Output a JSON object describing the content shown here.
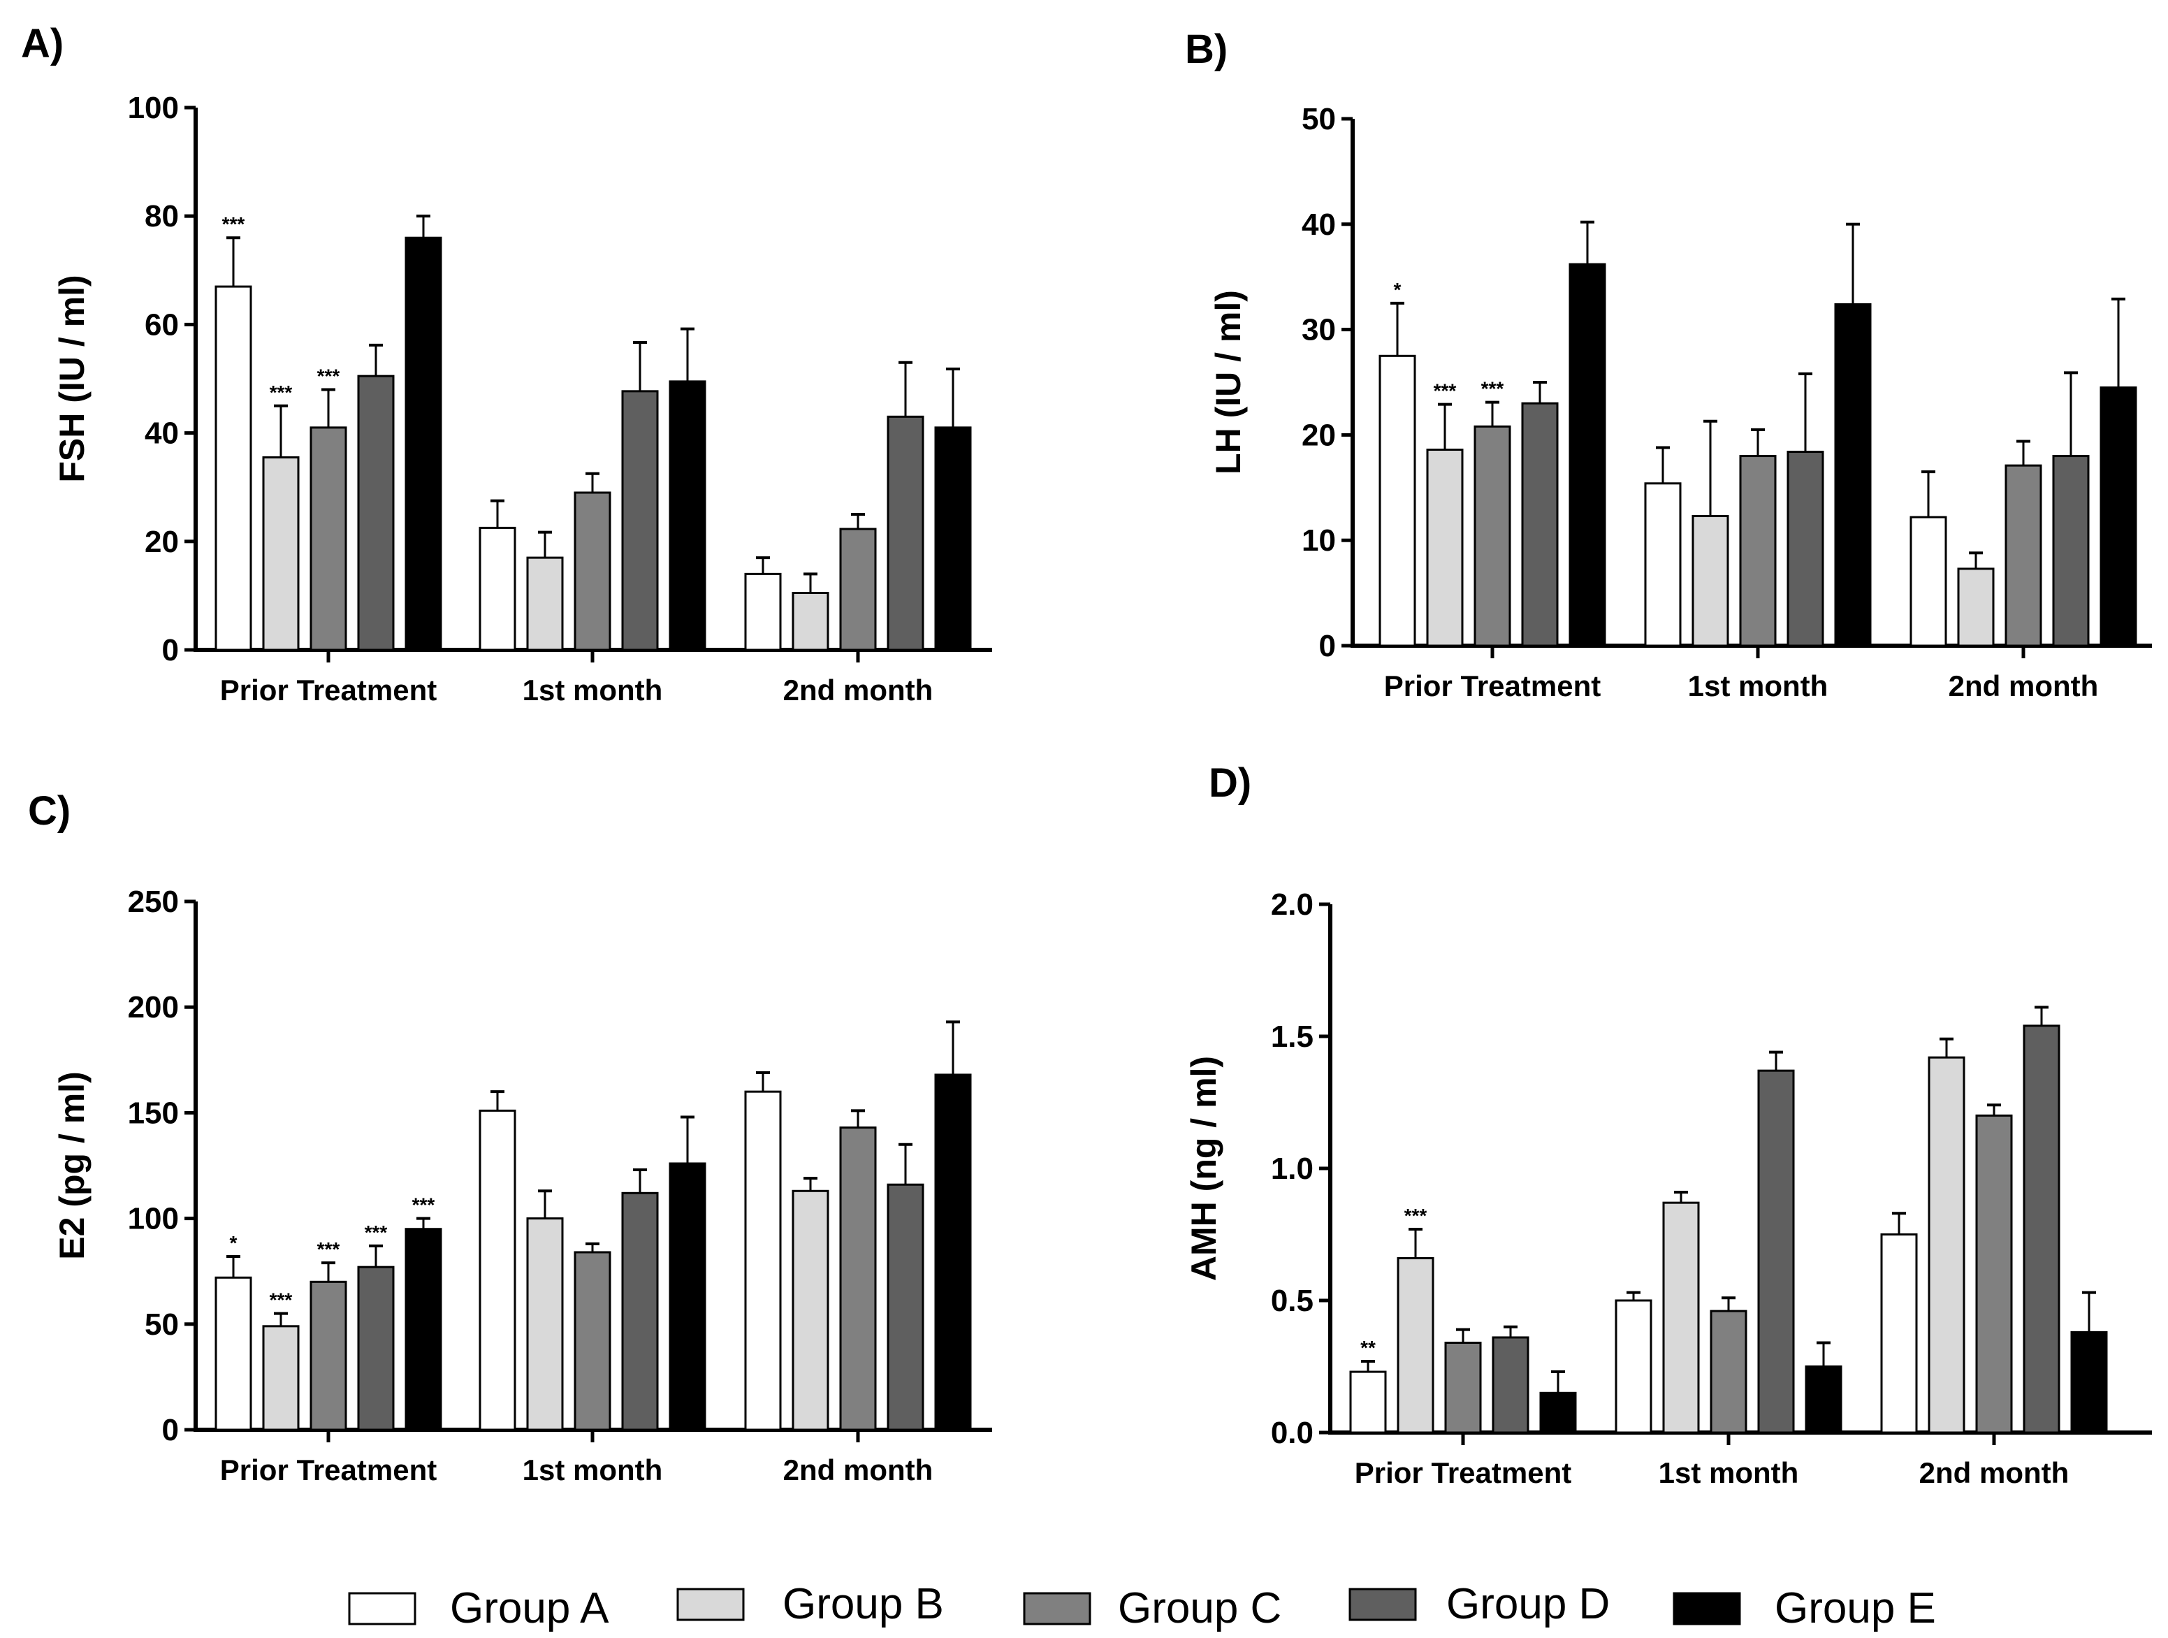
{
  "colors": {
    "Group A": "#ffffff",
    "Group B": "#d9d9d9",
    "Group C": "#808080",
    "Group D": "#5f5f5f",
    "Group E": "#000000"
  },
  "legend": [
    "Group A",
    "Group B",
    "Group C",
    "Group D",
    "Group E"
  ],
  "chart_data": [
    {
      "panel": "A)",
      "type": "bar",
      "ylabel": "FSH (IU / ml)",
      "ylim": [
        0,
        100
      ],
      "yticks": [
        "0",
        "20",
        "40",
        "60",
        "80",
        "100"
      ],
      "categories": [
        "Prior Treatment",
        "1st month",
        "2nd month"
      ],
      "series": [
        {
          "name": "Group A",
          "values": [
            67,
            22.5,
            14
          ],
          "errors": [
            9,
            5,
            3
          ],
          "sig": [
            "***",
            "",
            ""
          ]
        },
        {
          "name": "Group B",
          "values": [
            35.5,
            17,
            10.5
          ],
          "errors": [
            9.5,
            4.7,
            3.5
          ],
          "sig": [
            "***",
            "",
            ""
          ]
        },
        {
          "name": "Group C",
          "values": [
            41,
            29,
            22.3
          ],
          "errors": [
            7,
            3.5,
            2.7
          ],
          "sig": [
            "***",
            "",
            ""
          ]
        },
        {
          "name": "Group D",
          "values": [
            50.5,
            47.7,
            43
          ],
          "errors": [
            5.7,
            9,
            10
          ],
          "sig": [
            "",
            "",
            ""
          ]
        },
        {
          "name": "Group E",
          "values": [
            76,
            49.5,
            41
          ],
          "errors": [
            4,
            9.7,
            10.8
          ],
          "sig": [
            "",
            "",
            ""
          ]
        }
      ]
    },
    {
      "panel": "B)",
      "type": "bar",
      "ylabel": "LH (IU / ml)",
      "ylim": [
        0,
        50
      ],
      "yticks": [
        "0",
        "10",
        "20",
        "30",
        "40",
        "50"
      ],
      "categories": [
        "Prior Treatment",
        "1st month",
        "2nd month"
      ],
      "series": [
        {
          "name": "Group A",
          "values": [
            27.5,
            15.4,
            12.2
          ],
          "errors": [
            5,
            3.4,
            4.3
          ],
          "sig": [
            "*",
            "",
            ""
          ]
        },
        {
          "name": "Group B",
          "values": [
            18.6,
            12.3,
            7.3
          ],
          "errors": [
            4.3,
            9,
            1.5
          ],
          "sig": [
            "***",
            "",
            ""
          ]
        },
        {
          "name": "Group C",
          "values": [
            20.8,
            18,
            17.1
          ],
          "errors": [
            2.3,
            2.5,
            2.3
          ],
          "sig": [
            "***",
            "",
            ""
          ]
        },
        {
          "name": "Group D",
          "values": [
            23,
            18.4,
            18
          ],
          "errors": [
            2,
            7.4,
            7.9
          ],
          "sig": [
            "",
            "",
            ""
          ]
        },
        {
          "name": "Group E",
          "values": [
            36.2,
            32.4,
            24.5
          ],
          "errors": [
            4,
            7.6,
            8.4
          ],
          "sig": [
            "",
            "",
            ""
          ]
        }
      ]
    },
    {
      "panel": "C)",
      "type": "bar",
      "ylabel": "E2 (pg / ml)",
      "ylim": [
        0,
        250
      ],
      "yticks": [
        "0",
        "50",
        "100",
        "150",
        "200",
        "250"
      ],
      "categories": [
        "Prior Treatment",
        "1st month",
        "2nd month"
      ],
      "series": [
        {
          "name": "Group A",
          "values": [
            72,
            151,
            160
          ],
          "errors": [
            10,
            9,
            9
          ],
          "sig": [
            "*",
            "",
            ""
          ]
        },
        {
          "name": "Group B",
          "values": [
            49,
            100,
            113
          ],
          "errors": [
            6,
            13,
            6
          ],
          "sig": [
            "***",
            "",
            ""
          ]
        },
        {
          "name": "Group C",
          "values": [
            70,
            84,
            143
          ],
          "errors": [
            9,
            4,
            8
          ],
          "sig": [
            "***",
            "",
            ""
          ]
        },
        {
          "name": "Group D",
          "values": [
            77,
            112,
            116
          ],
          "errors": [
            10,
            11,
            19
          ],
          "sig": [
            "***",
            "",
            ""
          ]
        },
        {
          "name": "Group E",
          "values": [
            95,
            126,
            168
          ],
          "errors": [
            5,
            22,
            25
          ],
          "sig": [
            "***",
            "",
            ""
          ]
        }
      ]
    },
    {
      "panel": "D)",
      "type": "bar",
      "ylabel": "AMH (ng / ml)",
      "ylim": [
        0,
        2
      ],
      "yticks": [
        "0.0",
        "0.5",
        "1.0",
        "1.5",
        "2.0"
      ],
      "categories": [
        "Prior Treatment",
        "1st month",
        "2nd month"
      ],
      "series": [
        {
          "name": "Group A",
          "values": [
            0.23,
            0.5,
            0.75
          ],
          "errors": [
            0.04,
            0.03,
            0.08
          ],
          "sig": [
            "**",
            "",
            ""
          ]
        },
        {
          "name": "Group B",
          "values": [
            0.66,
            0.87,
            1.42
          ],
          "errors": [
            0.11,
            0.04,
            0.07
          ],
          "sig": [
            "***",
            "",
            ""
          ]
        },
        {
          "name": "Group C",
          "values": [
            0.34,
            0.46,
            1.2
          ],
          "errors": [
            0.05,
            0.05,
            0.04
          ],
          "sig": [
            "",
            "",
            ""
          ]
        },
        {
          "name": "Group D",
          "values": [
            0.36,
            1.37,
            1.54
          ],
          "errors": [
            0.04,
            0.07,
            0.07
          ],
          "sig": [
            "",
            "",
            ""
          ]
        },
        {
          "name": "Group E",
          "values": [
            0.15,
            0.25,
            0.38
          ],
          "errors": [
            0.08,
            0.09,
            0.15
          ],
          "sig": [
            "",
            "",
            ""
          ]
        }
      ]
    }
  ]
}
